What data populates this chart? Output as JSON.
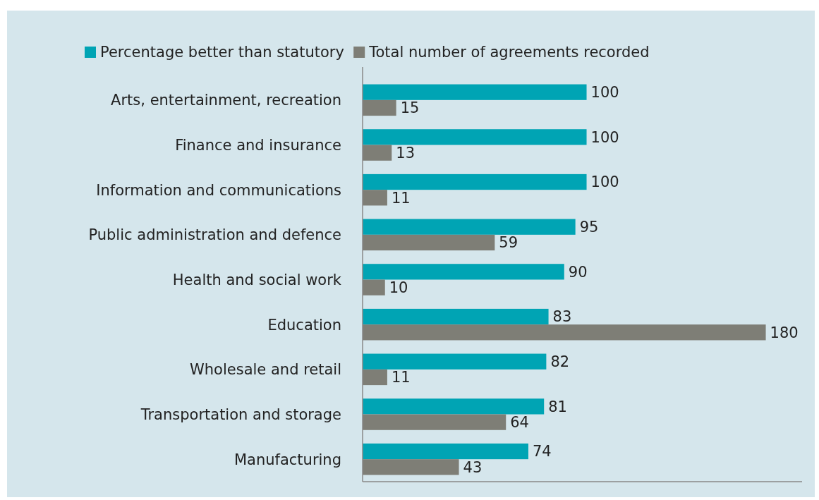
{
  "chart_data": {
    "type": "bar",
    "orientation": "horizontal",
    "categories": [
      "Arts, entertainment, recreation",
      "Finance and insurance",
      "Information and communications",
      "Public administration and defence",
      "Health and social work",
      "Education",
      "Wholesale and retail",
      "Transportation and storage",
      "Manufacturing"
    ],
    "series": [
      {
        "name": "Percentage better than statutory",
        "color": "#00a4b4",
        "values": [
          100,
          100,
          100,
          95,
          90,
          83,
          82,
          81,
          74
        ]
      },
      {
        "name": "Total number of agreements recorded",
        "color": "#7e7e76",
        "values": [
          15,
          13,
          11,
          59,
          10,
          180,
          11,
          64,
          43
        ]
      }
    ],
    "data_labels": true,
    "legend": "top"
  }
}
